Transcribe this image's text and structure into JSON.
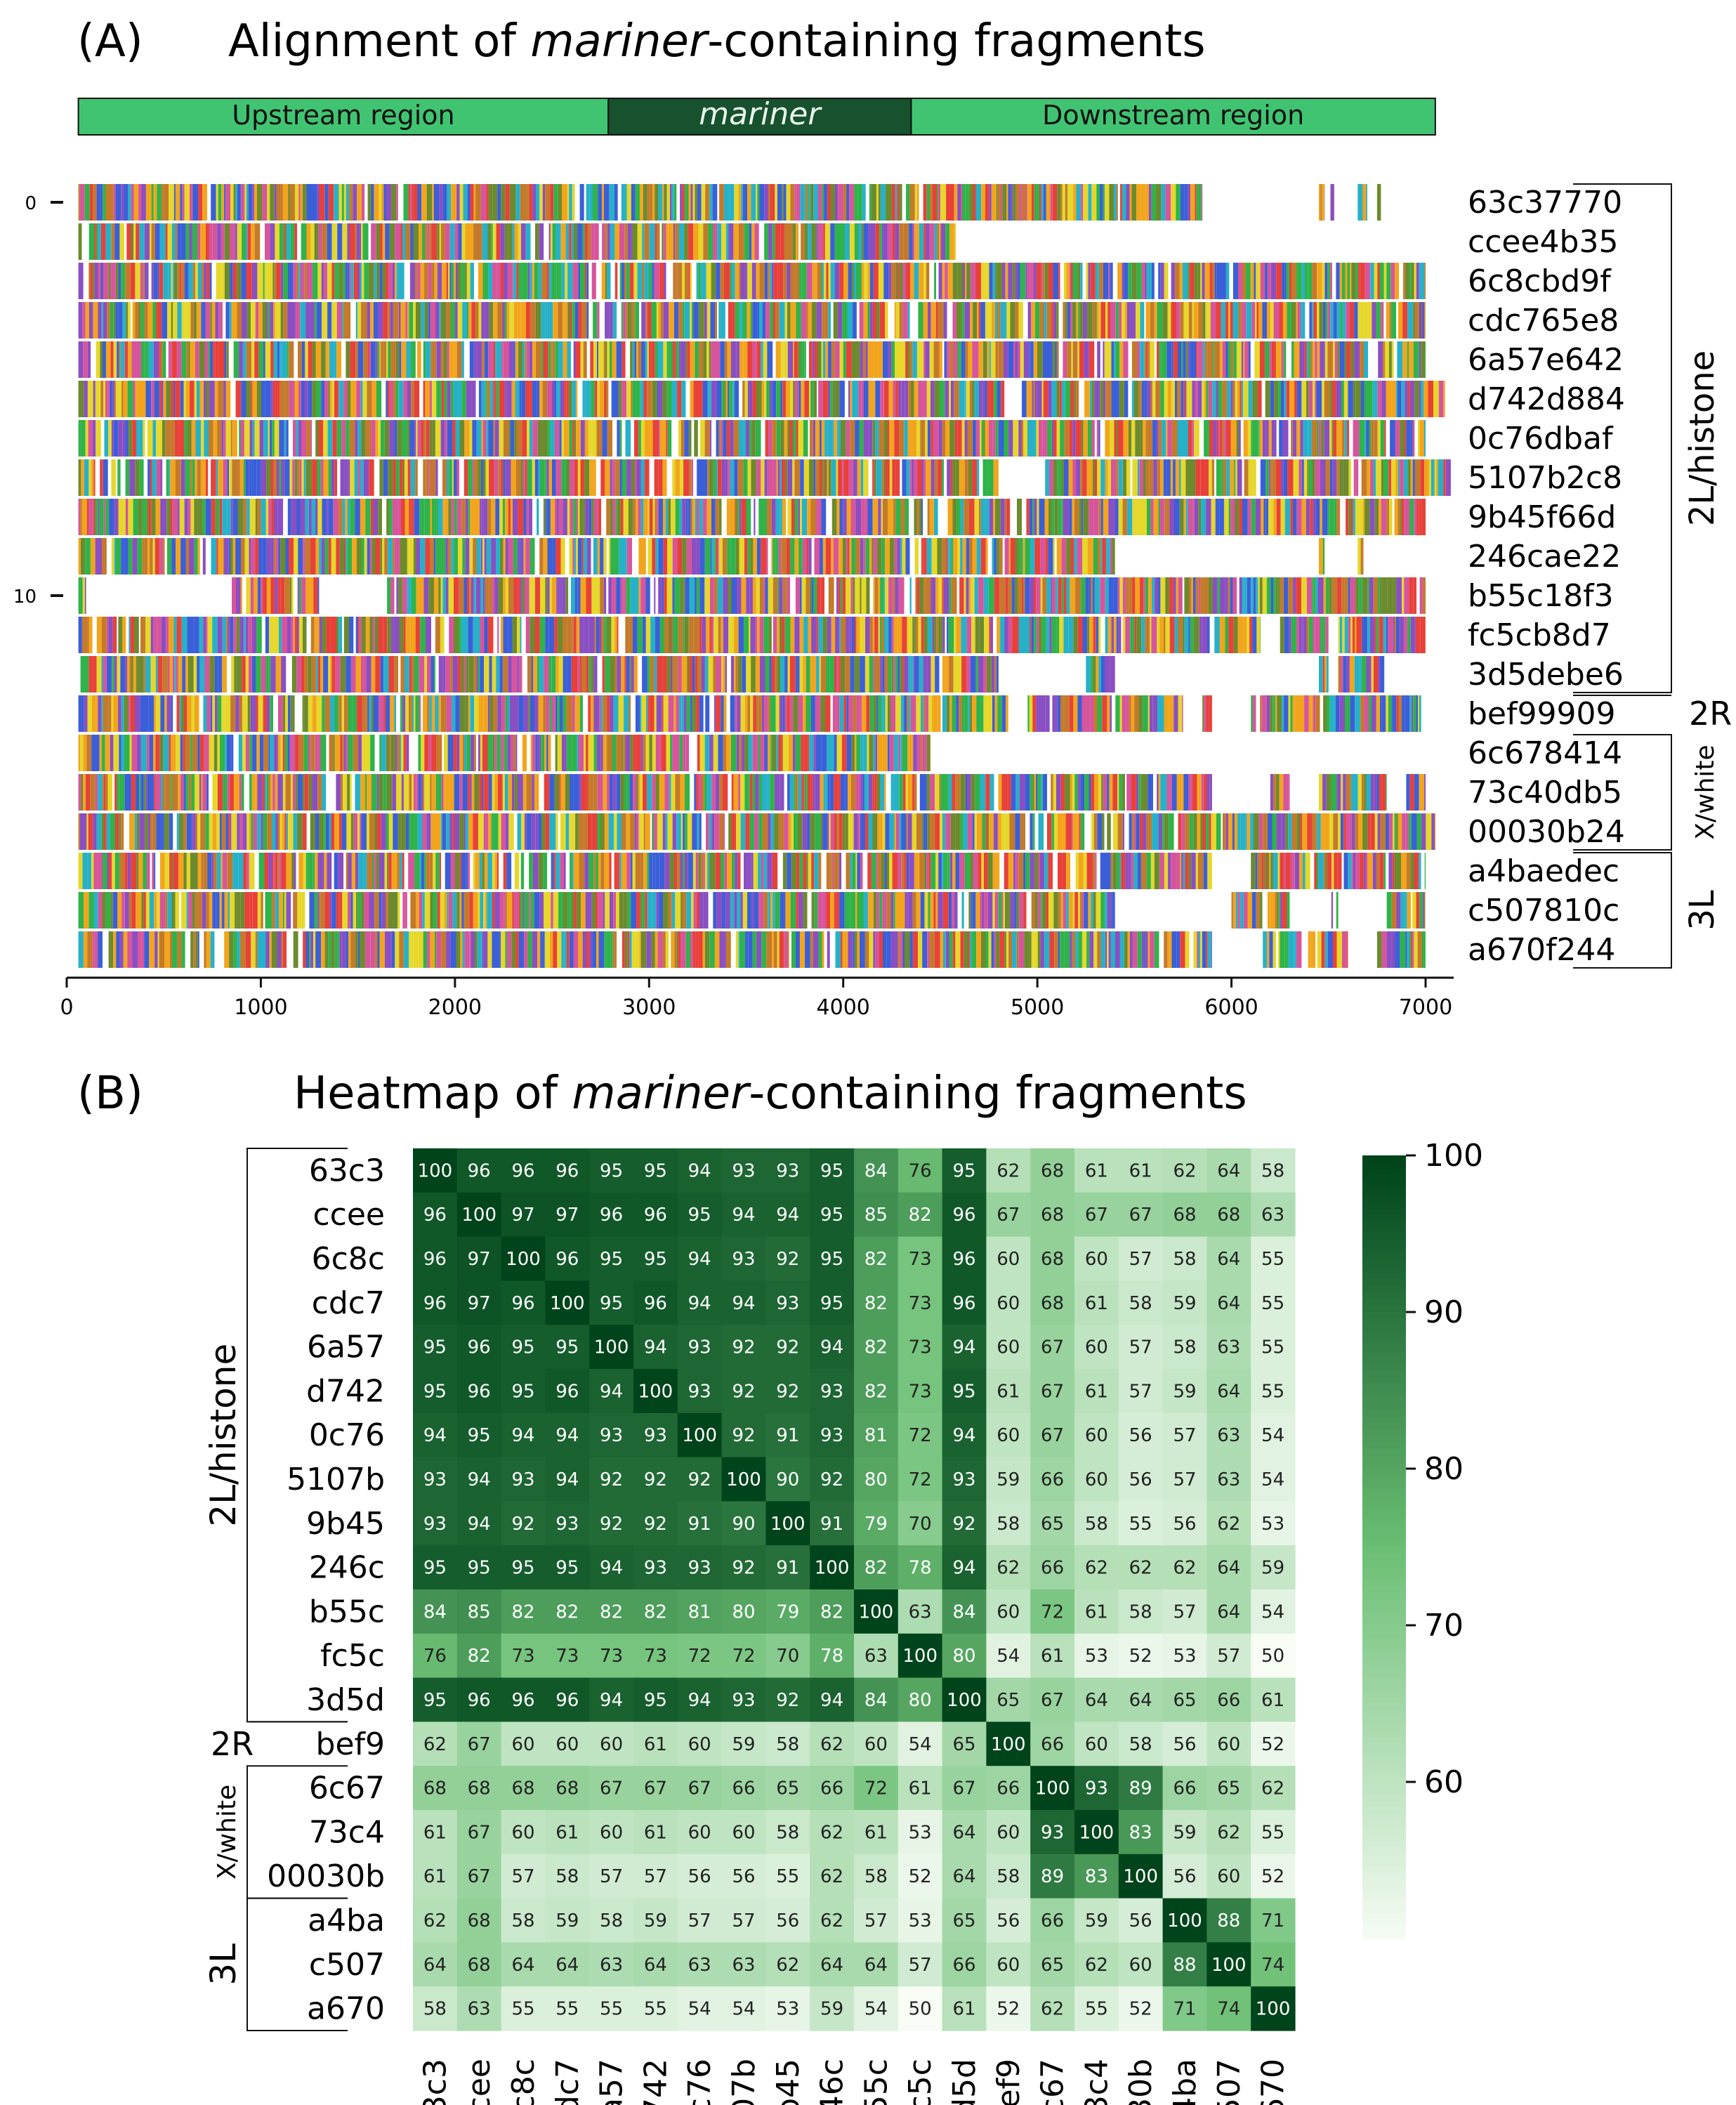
{
  "chart_data": [
    {
      "type": "heatmap",
      "panel_label": "(A)",
      "title_prefix": "Alignment of ",
      "title_italic": "mariner",
      "title_suffix": "-containing fragments",
      "regions": [
        {
          "label": "Upstream region",
          "x0": 60,
          "x1": 2790,
          "color": "#40c472",
          "italic": false
        },
        {
          "label": "mariner",
          "x0": 2790,
          "x1": 4350,
          "color": "#17512e",
          "italic": true
        },
        {
          "label": "Downstream region",
          "x0": 4350,
          "x1": 7050,
          "color": "#40c472",
          "italic": false
        }
      ],
      "xlim": [
        0,
        7100
      ],
      "xticks": [
        0,
        1000,
        2000,
        3000,
        4000,
        5000,
        6000,
        7000
      ],
      "yticks": [
        {
          "row": 0,
          "label": "0"
        },
        {
          "row": 10,
          "label": "10"
        }
      ],
      "color_palette": [
        "#e8413a",
        "#2fb34a",
        "#3b5fd9",
        "#f2a51c",
        "#8a4fc2",
        "#e6d72b",
        "#27b1c9",
        "#d6559c",
        "#6c8a2e",
        "#c47a2b"
      ],
      "sequences": [
        {
          "id": "63c37770",
          "segments": [
            [
              60,
              5850
            ],
            [
              6450,
              6480
            ],
            [
              6510,
              6530
            ],
            [
              6650,
              6700
            ],
            [
              6750,
              6770
            ]
          ]
        },
        {
          "id": "ccee4b35",
          "segments": [
            [
              60,
              4580
            ]
          ]
        },
        {
          "id": "6c8cbd9f",
          "segments": [
            [
              60,
              7000
            ]
          ]
        },
        {
          "id": "cdc765e8",
          "segments": [
            [
              60,
              7000
            ]
          ]
        },
        {
          "id": "6a57e642",
          "segments": [
            [
              60,
              7000
            ]
          ]
        },
        {
          "id": "d742d884",
          "segments": [
            [
              60,
              4830
            ],
            [
              4920,
              7100
            ]
          ]
        },
        {
          "id": "0c76dbaf",
          "segments": [
            [
              60,
              7000
            ]
          ]
        },
        {
          "id": "5107b2c8",
          "segments": [
            [
              60,
              4800
            ],
            [
              5040,
              7130
            ]
          ]
        },
        {
          "id": "9b45f66d",
          "segments": [
            [
              60,
              7000
            ]
          ]
        },
        {
          "id": "246cae22",
          "segments": [
            [
              60,
              5400
            ],
            [
              6450,
              6480
            ],
            [
              6650,
              6680
            ]
          ]
        },
        {
          "id": "b55c18f3",
          "segments": [
            [
              60,
              100
            ],
            [
              850,
              1300
            ],
            [
              1650,
              7000
            ]
          ]
        },
        {
          "id": "fc5cb8d7",
          "segments": [
            [
              60,
              6150
            ],
            [
              6250,
              6500
            ],
            [
              6550,
              7000
            ]
          ]
        },
        {
          "id": "3d5debe6",
          "segments": [
            [
              60,
              4800
            ],
            [
              5250,
              5400
            ],
            [
              6450,
              6500
            ],
            [
              6550,
              6800
            ]
          ]
        },
        {
          "id": "bef99909",
          "segments": [
            [
              60,
              4850
            ],
            [
              4950,
              5750
            ],
            [
              5850,
              5900
            ],
            [
              6100,
              7000
            ]
          ]
        },
        {
          "id": "6c678414",
          "segments": [
            [
              60,
              4450
            ]
          ]
        },
        {
          "id": "73c40db5",
          "segments": [
            [
              60,
              5900
            ],
            [
              6200,
              6300
            ],
            [
              6450,
              6800
            ],
            [
              6900,
              7000
            ]
          ]
        },
        {
          "id": "00030b24",
          "segments": [
            [
              60,
              7050
            ]
          ]
        },
        {
          "id": "a4baedec",
          "segments": [
            [
              60,
              5900
            ],
            [
              6100,
              7000
            ]
          ]
        },
        {
          "id": "c507810c",
          "segments": [
            [
              60,
              5400
            ],
            [
              6000,
              6300
            ],
            [
              6500,
              6550
            ],
            [
              6800,
              7000
            ]
          ]
        },
        {
          "id": "a670f244",
          "segments": [
            [
              60,
              5900
            ],
            [
              6150,
              6600
            ],
            [
              6750,
              7000
            ]
          ]
        }
      ],
      "groups": [
        {
          "label": "2L/histone",
          "from": 0,
          "to": 12,
          "style": "bracket"
        },
        {
          "label": "2R",
          "from": 13,
          "to": 13,
          "style": "line"
        },
        {
          "label": "X/white",
          "from": 14,
          "to": 16,
          "style": "bracket"
        },
        {
          "label": "3L",
          "from": 17,
          "to": 19,
          "style": "bracket"
        }
      ]
    },
    {
      "type": "heatmap",
      "panel_label": "(B)",
      "title_prefix": "Heatmap of ",
      "title_italic": "mariner",
      "title_suffix": "-containing fragments",
      "labels": [
        "63c3",
        "ccee",
        "6c8c",
        "cdc7",
        "6a57",
        "d742",
        "0c76",
        "5107b",
        "9b45",
        "246c",
        "b55c",
        "fc5c",
        "3d5d",
        "bef9",
        "6c67",
        "73c4",
        "00030b",
        "a4ba",
        "c507",
        "a670"
      ],
      "values": [
        [
          100,
          96,
          96,
          96,
          95,
          95,
          94,
          93,
          93,
          95,
          84,
          76,
          95,
          62,
          68,
          61,
          61,
          62,
          64,
          58
        ],
        [
          96,
          100,
          97,
          97,
          96,
          96,
          95,
          94,
          94,
          95,
          85,
          82,
          96,
          67,
          68,
          67,
          67,
          68,
          68,
          63
        ],
        [
          96,
          97,
          100,
          96,
          95,
          95,
          94,
          93,
          92,
          95,
          82,
          73,
          96,
          60,
          68,
          60,
          57,
          58,
          64,
          55
        ],
        [
          96,
          97,
          96,
          100,
          95,
          96,
          94,
          94,
          93,
          95,
          82,
          73,
          96,
          60,
          68,
          61,
          58,
          59,
          64,
          55
        ],
        [
          95,
          96,
          95,
          95,
          100,
          94,
          93,
          92,
          92,
          94,
          82,
          73,
          94,
          60,
          67,
          60,
          57,
          58,
          63,
          55
        ],
        [
          95,
          96,
          95,
          96,
          94,
          100,
          93,
          92,
          92,
          93,
          82,
          73,
          95,
          61,
          67,
          61,
          57,
          59,
          64,
          55
        ],
        [
          94,
          95,
          94,
          94,
          93,
          93,
          100,
          92,
          91,
          93,
          81,
          72,
          94,
          60,
          67,
          60,
          56,
          57,
          63,
          54
        ],
        [
          93,
          94,
          93,
          94,
          92,
          92,
          92,
          100,
          90,
          92,
          80,
          72,
          93,
          59,
          66,
          60,
          56,
          57,
          63,
          54
        ],
        [
          93,
          94,
          92,
          93,
          92,
          92,
          91,
          90,
          100,
          91,
          79,
          70,
          92,
          58,
          65,
          58,
          55,
          56,
          62,
          53
        ],
        [
          95,
          95,
          95,
          95,
          94,
          93,
          93,
          92,
          91,
          100,
          82,
          78,
          94,
          62,
          66,
          62,
          62,
          62,
          64,
          59
        ],
        [
          84,
          85,
          82,
          82,
          82,
          82,
          81,
          80,
          79,
          82,
          100,
          63,
          84,
          60,
          72,
          61,
          58,
          57,
          64,
          54
        ],
        [
          76,
          82,
          73,
          73,
          73,
          73,
          72,
          72,
          70,
          78,
          63,
          100,
          80,
          54,
          61,
          53,
          52,
          53,
          57,
          50
        ],
        [
          95,
          96,
          96,
          96,
          94,
          95,
          94,
          93,
          92,
          94,
          84,
          80,
          100,
          65,
          67,
          64,
          64,
          65,
          66,
          61
        ],
        [
          62,
          67,
          60,
          60,
          60,
          61,
          60,
          59,
          58,
          62,
          60,
          54,
          65,
          100,
          66,
          60,
          58,
          56,
          60,
          52
        ],
        [
          68,
          68,
          68,
          68,
          67,
          67,
          67,
          66,
          65,
          66,
          72,
          61,
          67,
          66,
          100,
          93,
          89,
          66,
          65,
          62
        ],
        [
          61,
          67,
          60,
          61,
          60,
          61,
          60,
          60,
          58,
          62,
          61,
          53,
          64,
          60,
          93,
          100,
          83,
          59,
          62,
          55
        ],
        [
          61,
          67,
          57,
          58,
          57,
          57,
          56,
          56,
          55,
          62,
          58,
          52,
          64,
          58,
          89,
          83,
          100,
          56,
          60,
          52
        ],
        [
          62,
          68,
          58,
          59,
          58,
          59,
          57,
          57,
          56,
          62,
          57,
          53,
          65,
          56,
          66,
          59,
          56,
          100,
          88,
          71
        ],
        [
          64,
          68,
          64,
          64,
          63,
          64,
          63,
          63,
          62,
          64,
          64,
          57,
          66,
          60,
          65,
          62,
          60,
          88,
          100,
          74
        ],
        [
          58,
          63,
          55,
          55,
          55,
          55,
          54,
          54,
          53,
          59,
          54,
          50,
          61,
          52,
          62,
          55,
          52,
          71,
          74,
          100
        ]
      ],
      "colorbar": {
        "min": 50,
        "max": 100,
        "ticks": [
          60,
          70,
          80,
          90,
          100
        ],
        "colors": [
          "#f7fcf5",
          "#00441b"
        ]
      },
      "groups": [
        {
          "label": "2L/histone",
          "from": 0,
          "to": 12
        },
        {
          "label": "2R",
          "from": 13,
          "to": 13
        },
        {
          "label": "X/white",
          "from": 14,
          "to": 16
        },
        {
          "label": "3L",
          "from": 17,
          "to": 19
        }
      ]
    }
  ]
}
